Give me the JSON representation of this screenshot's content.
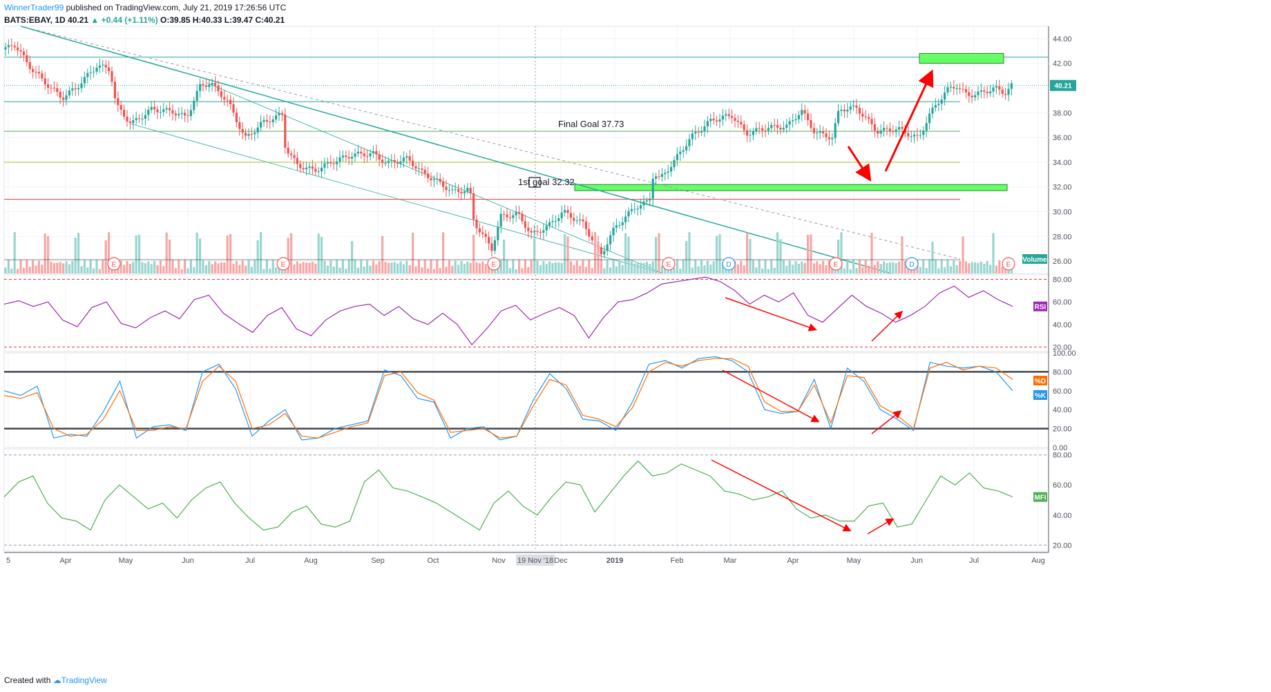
{
  "header": {
    "author": "WinnerTrader99",
    "published": "published on TradingView.com, July 21, 2019 17:26:56 UTC",
    "symbol": "BATS:EBAY, 1D",
    "last": "40.21",
    "change": "+0.44 (+1.11%)",
    "ohlc": "O:39.85 H:40.33 L:39.47 C:40.21"
  },
  "footer": {
    "created": "Created with",
    "brand": "TradingView"
  },
  "colors": {
    "up": "#26a69a",
    "down": "#ef5350",
    "rsi": "#9c27b0",
    "k": "#2196f3",
    "d": "#ff6d00",
    "mfi": "#4caf50",
    "box": "#66ff66",
    "arrow": "#ff0000"
  },
  "chart_data": [
    {
      "type": "candlestick",
      "title": "BATS:EBAY, 1D",
      "x_labels": [
        "5",
        "Apr",
        "May",
        "Jun",
        "Jul",
        "Aug",
        "Sep",
        "Oct",
        "Nov",
        "Dec",
        "2019",
        "Feb",
        "Mar",
        "Apr",
        "May",
        "Jun",
        "Jul",
        "Aug"
      ],
      "crosshair_x_label": "19 Nov '18",
      "y_ticks": [
        26,
        28,
        30,
        32,
        34,
        36,
        38,
        40,
        42,
        44
      ],
      "ylim": [
        25,
        45
      ],
      "last_price": "40.21",
      "annotations": [
        "Final Goal 37.73",
        "1st goal 32.32"
      ],
      "horizontal_levels": [
        {
          "value": 42.5,
          "color": "#26a69a"
        },
        {
          "value": 38.9,
          "color": "#26a69a"
        },
        {
          "value": 36.5,
          "color": "#4caf50"
        },
        {
          "value": 34.0,
          "color": "#a8c020"
        },
        {
          "value": 31.0,
          "color": "#e53935"
        }
      ],
      "target_boxes": [
        {
          "from": 32.2,
          "to": 31.7
        },
        {
          "from": 42.8,
          "to": 42.0
        }
      ],
      "anchor_closes": [
        {
          "x": 0,
          "y": 42.8
        },
        {
          "x": 20,
          "y": 43.6
        },
        {
          "x": 45,
          "y": 41.6
        },
        {
          "x": 70,
          "y": 40.2
        },
        {
          "x": 90,
          "y": 39.2
        },
        {
          "x": 110,
          "y": 40.0
        },
        {
          "x": 140,
          "y": 41.8
        },
        {
          "x": 160,
          "y": 41.5
        },
        {
          "x": 163,
          "y": 40.3
        },
        {
          "x": 168,
          "y": 38.6
        },
        {
          "x": 190,
          "y": 37.1
        },
        {
          "x": 220,
          "y": 38.3
        },
        {
          "x": 250,
          "y": 38.1
        },
        {
          "x": 270,
          "y": 37.6
        },
        {
          "x": 290,
          "y": 40.2
        },
        {
          "x": 305,
          "y": 40.4
        },
        {
          "x": 330,
          "y": 38.9
        },
        {
          "x": 355,
          "y": 35.9
        },
        {
          "x": 380,
          "y": 37.2
        },
        {
          "x": 410,
          "y": 37.9
        },
        {
          "x": 413,
          "y": 35.2
        },
        {
          "x": 430,
          "y": 33.8
        },
        {
          "x": 455,
          "y": 33.3
        },
        {
          "x": 480,
          "y": 34.0
        },
        {
          "x": 510,
          "y": 34.6
        },
        {
          "x": 540,
          "y": 34.7
        },
        {
          "x": 560,
          "y": 33.9
        },
        {
          "x": 590,
          "y": 34.3
        },
        {
          "x": 610,
          "y": 33.2
        },
        {
          "x": 640,
          "y": 32.2
        },
        {
          "x": 655,
          "y": 31.6
        },
        {
          "x": 680,
          "y": 31.8
        },
        {
          "x": 686,
          "y": 29.2
        },
        {
          "x": 700,
          "y": 28.0
        },
        {
          "x": 712,
          "y": 27.0
        },
        {
          "x": 725,
          "y": 29.6
        },
        {
          "x": 750,
          "y": 29.8
        },
        {
          "x": 770,
          "y": 28.1
        },
        {
          "x": 795,
          "y": 28.9
        },
        {
          "x": 815,
          "y": 30.0
        },
        {
          "x": 845,
          "y": 29.0
        },
        {
          "x": 870,
          "y": 26.5
        },
        {
          "x": 890,
          "y": 28.7
        },
        {
          "x": 920,
          "y": 30.4
        },
        {
          "x": 940,
          "y": 30.8
        },
        {
          "x": 946,
          "y": 33.2
        },
        {
          "x": 955,
          "y": 32.6
        },
        {
          "x": 975,
          "y": 34.0
        },
        {
          "x": 1000,
          "y": 36.0
        },
        {
          "x": 1030,
          "y": 37.4
        },
        {
          "x": 1060,
          "y": 37.8
        },
        {
          "x": 1080,
          "y": 36.3
        },
        {
          "x": 1110,
          "y": 36.8
        },
        {
          "x": 1140,
          "y": 36.9
        },
        {
          "x": 1160,
          "y": 38.2
        },
        {
          "x": 1180,
          "y": 36.4
        },
        {
          "x": 1205,
          "y": 36.0
        },
        {
          "x": 1215,
          "y": 38.3
        },
        {
          "x": 1240,
          "y": 38.4
        },
        {
          "x": 1270,
          "y": 36.5
        },
        {
          "x": 1300,
          "y": 36.7
        },
        {
          "x": 1330,
          "y": 35.9
        },
        {
          "x": 1345,
          "y": 37.8
        },
        {
          "x": 1370,
          "y": 39.8
        },
        {
          "x": 1385,
          "y": 40.2
        },
        {
          "x": 1400,
          "y": 39.4
        },
        {
          "x": 1420,
          "y": 39.6
        },
        {
          "x": 1440,
          "y": 40.0
        },
        {
          "x": 1455,
          "y": 39.6
        },
        {
          "x": 1465,
          "y": 40.21
        }
      ],
      "volume_label": "Volume",
      "event_markers": [
        {
          "x": 165,
          "label": "E"
        },
        {
          "x": 410,
          "label": "E"
        },
        {
          "x": 715,
          "label": "E"
        },
        {
          "x": 968,
          "label": "E"
        },
        {
          "x": 1055,
          "label": "D"
        },
        {
          "x": 1210,
          "label": "E"
        },
        {
          "x": 1320,
          "label": "D"
        },
        {
          "x": 1460,
          "label": "E"
        }
      ]
    },
    {
      "type": "line",
      "series": [
        {
          "name": "RSI",
          "values": [
            58,
            61,
            56,
            60,
            44,
            38,
            55,
            60,
            41,
            37,
            46,
            52,
            45,
            62,
            66,
            50,
            41,
            33,
            48,
            55,
            36,
            30,
            44,
            52,
            56,
            58,
            48,
            56,
            45,
            40,
            50,
            40,
            22,
            36,
            52,
            57,
            44,
            50,
            55,
            48,
            28,
            46,
            60,
            62,
            68,
            76,
            78,
            80,
            82,
            78,
            70,
            58,
            66,
            60,
            68,
            48,
            42,
            54,
            66,
            56,
            50,
            42,
            48,
            56,
            68,
            74,
            64,
            70,
            62,
            56
          ]
        }
      ],
      "y_ticks": [
        20,
        40,
        60,
        80
      ],
      "ylim": [
        16,
        84
      ],
      "levels": [
        80,
        20
      ]
    },
    {
      "type": "line",
      "series": [
        {
          "name": "%K",
          "values": [
            60,
            55,
            65,
            10,
            14,
            12,
            38,
            70,
            10,
            22,
            24,
            18,
            80,
            88,
            62,
            12,
            28,
            40,
            8,
            10,
            20,
            24,
            28,
            82,
            76,
            52,
            48,
            10,
            20,
            22,
            8,
            12,
            50,
            78,
            62,
            30,
            28,
            18,
            48,
            88,
            92,
            84,
            94,
            96,
            92,
            80,
            40,
            36,
            38,
            72,
            20,
            84,
            70,
            40,
            30,
            18,
            90,
            86,
            84,
            86,
            80,
            60
          ]
        },
        {
          "name": "%D",
          "values": [
            55,
            52,
            58,
            20,
            12,
            14,
            30,
            60,
            18,
            18,
            22,
            20,
            70,
            86,
            70,
            20,
            24,
            36,
            12,
            10,
            16,
            22,
            26,
            76,
            80,
            58,
            50,
            16,
            18,
            20,
            10,
            12,
            44,
            72,
            66,
            34,
            30,
            22,
            42,
            80,
            90,
            86,
            92,
            94,
            94,
            86,
            48,
            38,
            38,
            66,
            26,
            76,
            74,
            44,
            34,
            20,
            84,
            90,
            82,
            86,
            84,
            72
          ]
        }
      ],
      "y_ticks": [
        0,
        20,
        40,
        60,
        80,
        100
      ],
      "ylim": [
        0,
        100
      ],
      "levels": [
        80,
        20
      ]
    },
    {
      "type": "line",
      "series": [
        {
          "name": "MFI",
          "values": [
            52,
            62,
            66,
            48,
            38,
            36,
            30,
            50,
            60,
            52,
            44,
            48,
            38,
            50,
            58,
            62,
            48,
            38,
            30,
            32,
            42,
            46,
            34,
            32,
            36,
            62,
            70,
            58,
            56,
            52,
            48,
            42,
            36,
            30,
            48,
            56,
            46,
            40,
            52,
            62,
            60,
            42,
            54,
            66,
            76,
            66,
            68,
            74,
            70,
            66,
            56,
            54,
            50,
            52,
            56,
            44,
            38,
            40,
            36,
            36,
            46,
            48,
            32,
            34,
            50,
            66,
            60,
            68,
            58,
            56,
            52
          ]
        }
      ],
      "y_ticks": [
        20,
        40,
        60,
        80
      ],
      "ylim": [
        16,
        84
      ],
      "levels": [
        80,
        20
      ]
    }
  ]
}
